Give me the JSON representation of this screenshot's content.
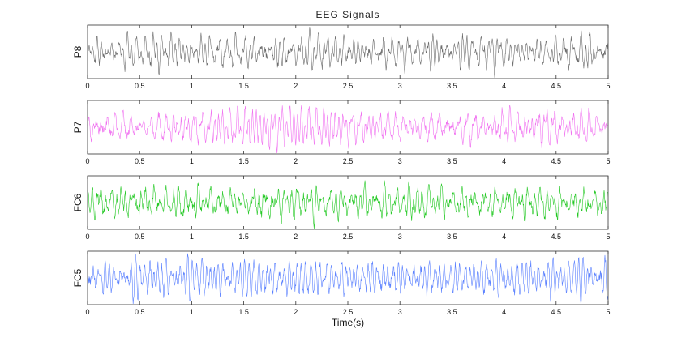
{
  "chart_data": {
    "type": "line",
    "title": "EEG Signals",
    "xlabel": "Time(s)",
    "xlim": [
      0,
      5
    ],
    "xticks": [
      "0",
      "0.5",
      "1",
      "1.5",
      "2",
      "2.5",
      "3",
      "3.5",
      "4",
      "4.5",
      "5"
    ],
    "grid": false,
    "panels": [
      {
        "ylabel": "P8",
        "color": "#6a6a6a"
      },
      {
        "ylabel": "P7",
        "color": "#f070f0"
      },
      {
        "ylabel": "FC6",
        "color": "#22c822"
      },
      {
        "ylabel": "FC5",
        "color": "#5a80ff"
      }
    ]
  }
}
